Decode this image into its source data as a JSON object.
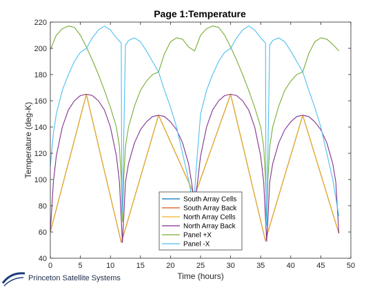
{
  "chart_data": {
    "type": "line",
    "title": "Page 1:Temperature",
    "xlabel": "Time (hours)",
    "ylabel": "Temperature (deg-K)",
    "xlim": [
      0,
      50
    ],
    "ylim": [
      40,
      220
    ],
    "xticks": [
      0,
      5,
      10,
      15,
      20,
      25,
      30,
      35,
      40,
      45,
      50
    ],
    "yticks": [
      40,
      60,
      80,
      100,
      120,
      140,
      160,
      180,
      200,
      220
    ],
    "grid": false,
    "legend_position": "bottom-center",
    "series": [
      {
        "name": "South Array Cells",
        "color": "#0072BD",
        "x": [
          0,
          6,
          11.8,
          12.2,
          18,
          23.8,
          24.2,
          30,
          35.8,
          36.2,
          42,
          48
        ],
        "y": [
          60,
          165,
          52,
          58,
          149,
          90,
          90,
          165,
          53,
          60,
          149,
          59
        ]
      },
      {
        "name": "South Array Back",
        "color": "#D95319",
        "x": [
          0,
          6,
          11.8,
          12.2,
          18,
          23.8,
          24.2,
          30,
          35.8,
          36.2,
          42,
          48
        ],
        "y": [
          60,
          165,
          52,
          58,
          149,
          90,
          90,
          165,
          53,
          60,
          149,
          59
        ]
      },
      {
        "name": "North Array Cells",
        "color": "#EDB120",
        "x": [
          0,
          6,
          11.8,
          12.2,
          18,
          23.8,
          24.2,
          30,
          35.8,
          36.2,
          42,
          48
        ],
        "y": [
          60,
          165,
          52,
          58,
          149,
          90,
          90,
          165,
          53,
          60,
          149,
          59
        ]
      },
      {
        "name": "North Array Back",
        "color": "#7E2F8E",
        "x": [
          0,
          0.5,
          1,
          2,
          3,
          4,
          5,
          6,
          7,
          8,
          9,
          10,
          11,
          11.5,
          11.8,
          12,
          12.2,
          12.5,
          13,
          14,
          15,
          16,
          17,
          18,
          19,
          20,
          21,
          22,
          23,
          23.5,
          23.8,
          24,
          24.2,
          24.5,
          25,
          26,
          27,
          28,
          29,
          30,
          31,
          32,
          33,
          34,
          35,
          35.5,
          35.8,
          36,
          36.2,
          36.5,
          37,
          38,
          39,
          40,
          41,
          42,
          43,
          44,
          45,
          46,
          47,
          47.5,
          48
        ],
        "y": [
          60,
          98,
          118,
          140,
          153,
          160,
          164,
          165,
          164,
          160,
          153,
          140,
          118,
          98,
          70,
          52,
          70,
          98,
          112,
          128,
          138,
          144,
          148,
          149,
          148,
          144,
          138,
          128,
          112,
          98,
          88,
          90,
          88,
          98,
          118,
          140,
          153,
          160,
          164,
          165,
          164,
          160,
          153,
          140,
          118,
          98,
          70,
          53,
          70,
          98,
          112,
          128,
          138,
          144,
          148,
          149,
          148,
          144,
          138,
          128,
          112,
          98,
          59
        ]
      },
      {
        "name": "Panel +X",
        "color": "#77AC30",
        "x": [
          0,
          1,
          2,
          3,
          4,
          5,
          6,
          7,
          8,
          9,
          10,
          11,
          11.5,
          11.8,
          12,
          12.2,
          12.5,
          13,
          14,
          15,
          16,
          17,
          18,
          19,
          20,
          21,
          22,
          23,
          24,
          25,
          26,
          27,
          28,
          29,
          30,
          31,
          32,
          33,
          34,
          35,
          35.5,
          35.8,
          36,
          36.2,
          36.5,
          37,
          38,
          39,
          40,
          41,
          42,
          43,
          44,
          45,
          46,
          47,
          48
        ],
        "y": [
          199,
          210,
          215,
          217,
          216,
          210,
          201,
          191,
          180,
          168,
          155,
          140,
          125,
          100,
          68,
          100,
          125,
          140,
          156,
          168,
          175,
          180,
          182,
          196,
          205,
          208,
          207,
          201,
          198,
          210,
          215,
          217,
          216,
          210,
          201,
          191,
          180,
          168,
          155,
          140,
          125,
          100,
          65,
          100,
          125,
          140,
          156,
          168,
          175,
          180,
          182,
          196,
          205,
          208,
          207,
          203,
          198
        ]
      },
      {
        "name": "Panel -X",
        "color": "#4DBEEE",
        "x": [
          0,
          0.5,
          1,
          2,
          3,
          4,
          5,
          6,
          7,
          8,
          9,
          10,
          11,
          11.8,
          11.9,
          12,
          12.5,
          12.6,
          13,
          14,
          15,
          16,
          17,
          18,
          19,
          20,
          21,
          22,
          23,
          23.8,
          24,
          24.3,
          25,
          26,
          27,
          28,
          29,
          30,
          31,
          32,
          33,
          34,
          35,
          35.8,
          35.9,
          36,
          36.5,
          36.6,
          37,
          38,
          39,
          40,
          41,
          42,
          43,
          44,
          45,
          46,
          47,
          48
        ],
        "y": [
          110,
          135,
          150,
          168,
          180,
          190,
          197,
          200,
          208,
          214,
          217,
          214,
          208,
          204,
          75,
          75,
          203,
          203,
          206,
          208,
          205,
          198,
          190,
          182,
          168,
          155,
          140,
          120,
          100,
          80,
          90,
          110,
          150,
          168,
          180,
          190,
          197,
          200,
          208,
          214,
          217,
          214,
          208,
          204,
          65,
          65,
          203,
          203,
          206,
          208,
          205,
          198,
          190,
          182,
          168,
          155,
          140,
          120,
          100,
          72
        ]
      }
    ]
  },
  "logo": {
    "text": "Princeton Satellite Systems"
  }
}
